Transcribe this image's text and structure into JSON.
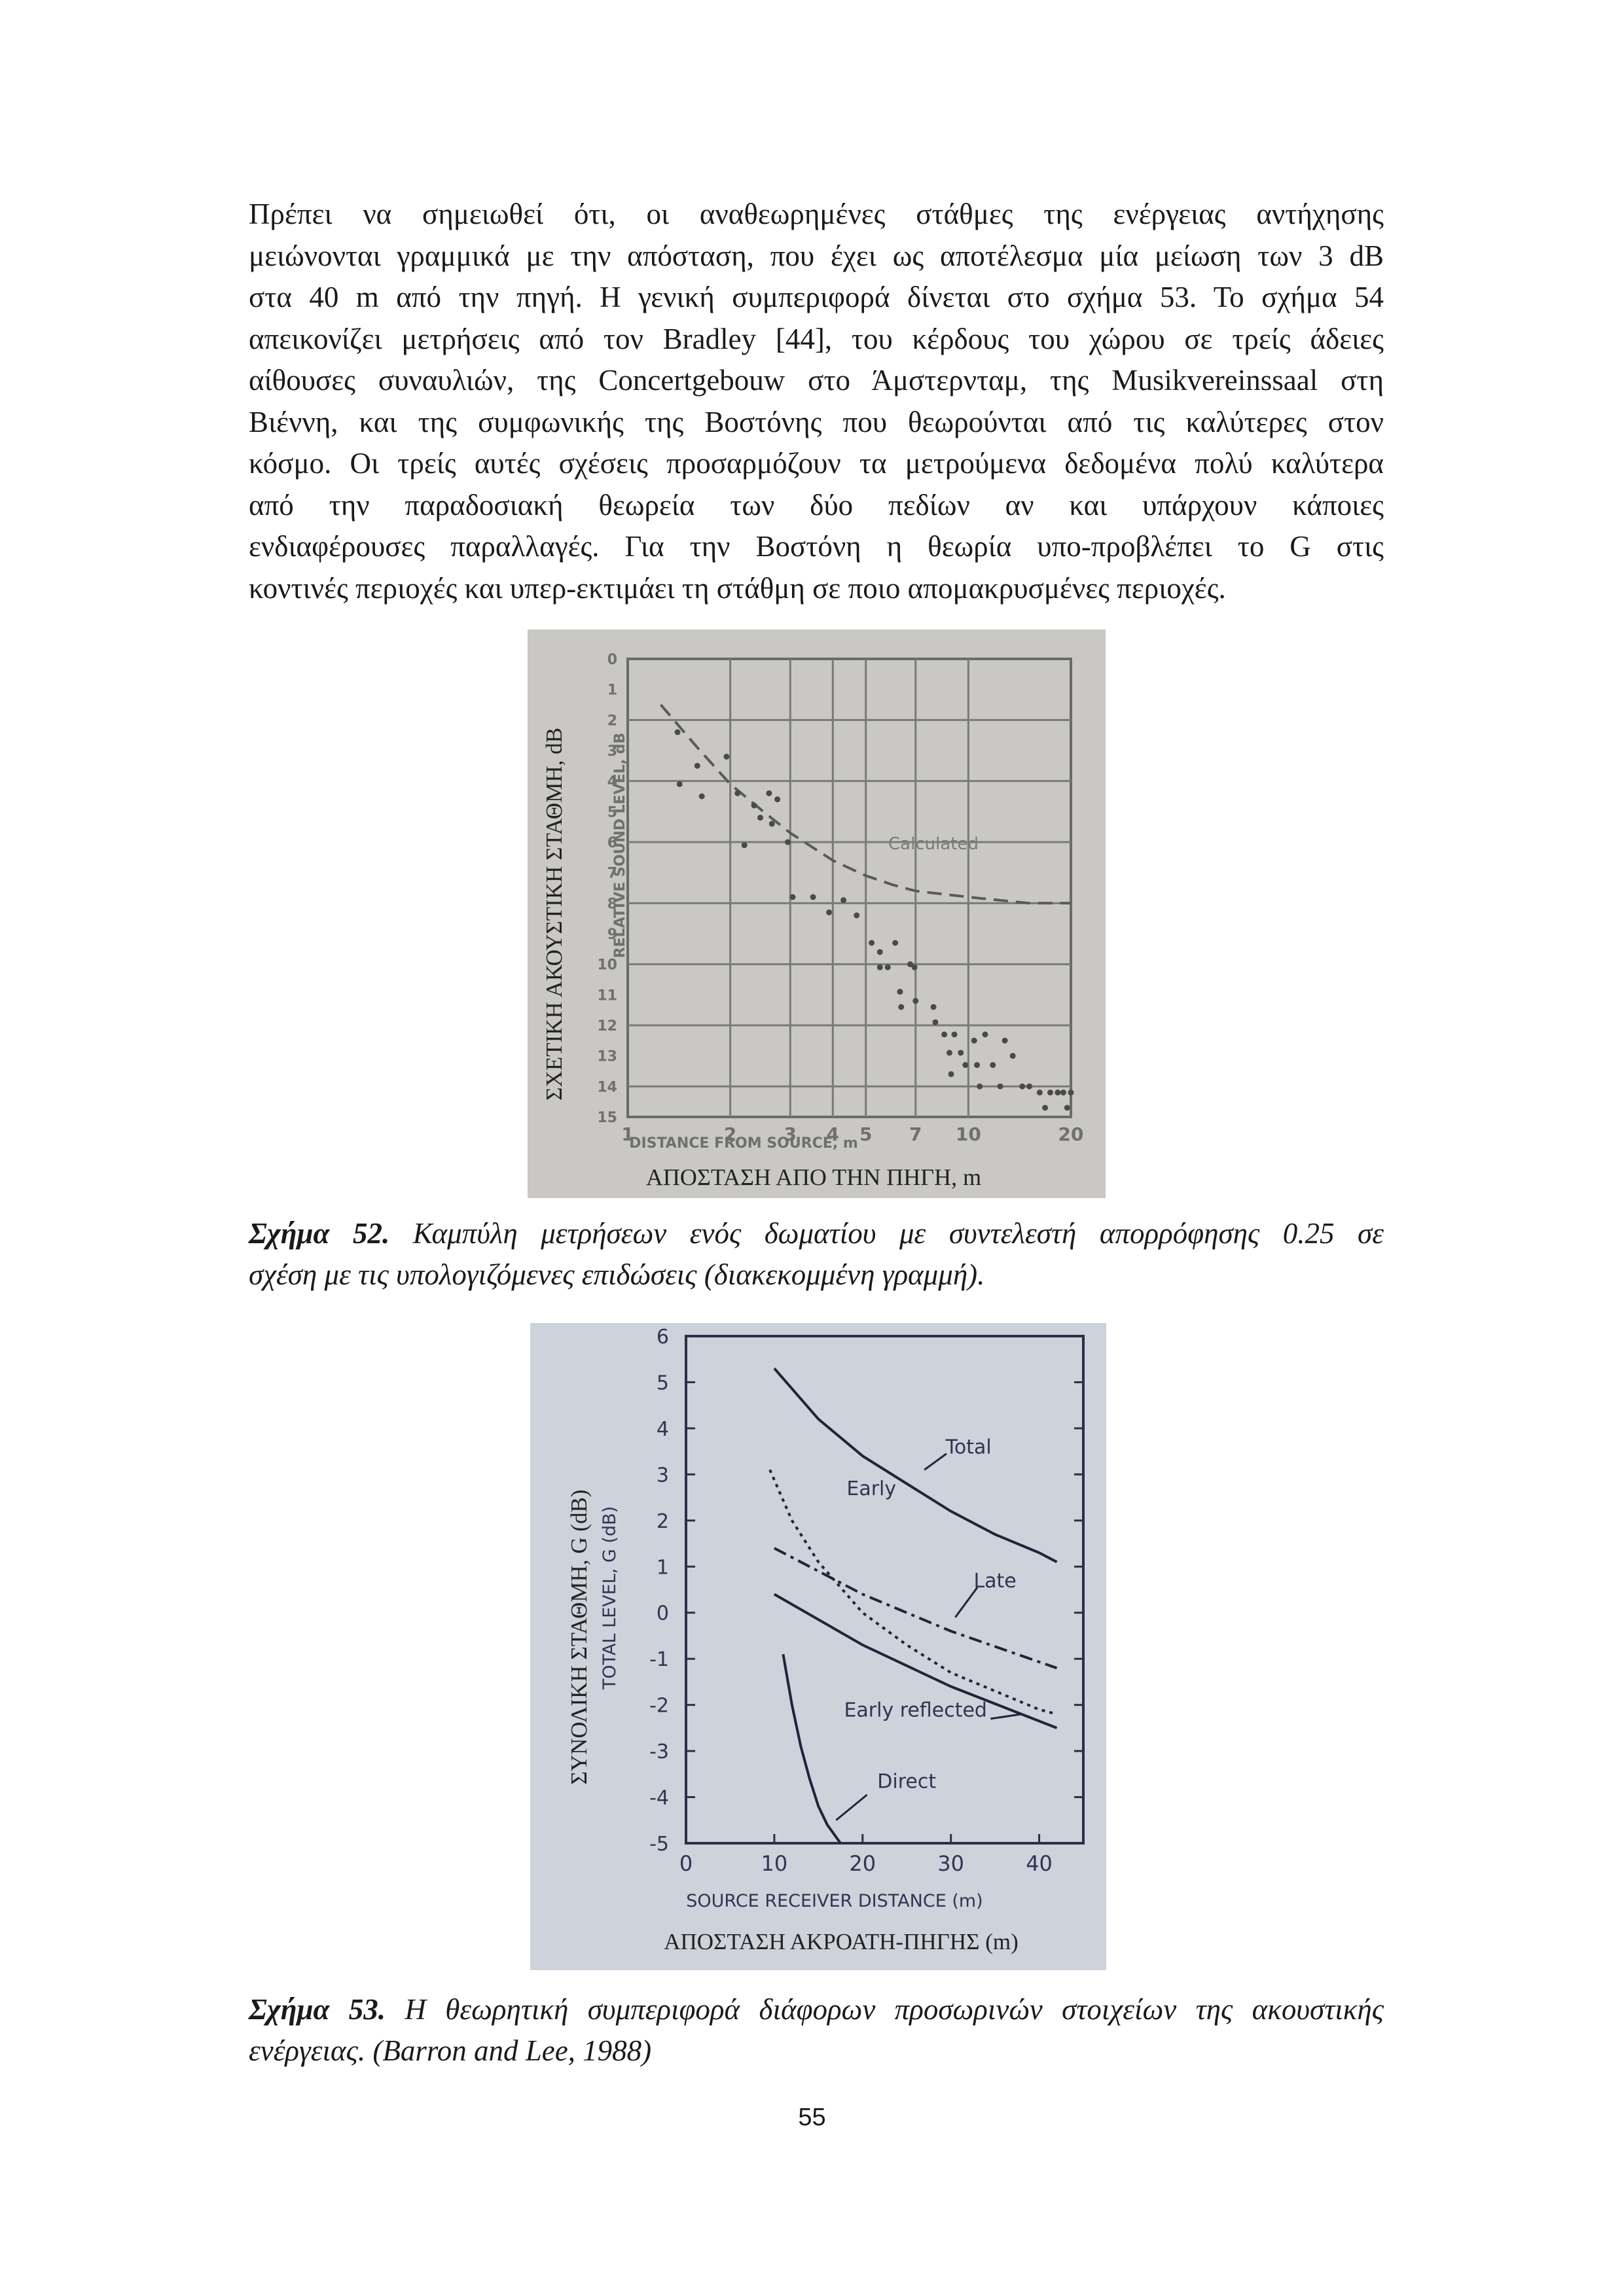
{
  "body_text": [
    "Πρέπει να σημειωθεί ότι, οι αναθεωρημένες στάθμες της ενέργειας αντήχησης",
    "μειώνονται γραμμικά με την απόσταση, που έχει ως αποτέλεσμα μία μείωση των 3 dB",
    "στα 40 m από την πηγή. Η γενική συμπεριφορά δίνεται στο σχήμα 53. Το σχήμα 54",
    "απεικονίζει μετρήσεις από τον Bradley [44], του κέρδους του χώρου σε τρείς άδειες",
    "αίθουσες συναυλιών, της Concertgebouw στο Άμστερνταμ, της Musikvereinssaal στη",
    "Βιέννη, και της συμφωνικής της Βοστόνης που θεωρούνται από τις καλύτερες στον",
    "κόσμο. Οι τρείς αυτές σχέσεις προσαρμόζουν τα μετρούμενα δεδομένα πολύ καλύτερα",
    "από την παραδοσιακή θεωρεία των δύο πεδίων αν και υπάρχουν κάποιες",
    "ενδιαφέρουσες παραλλαγές. Για την Βοστόνη η θεωρία υπο-προβλέπει το G στις",
    "κοντινές περιοχές και υπερ-εκτιμάει τη στάθμη σε ποιο απομακρυσμένες περιοχές."
  ],
  "figure52": {
    "caption_label": "Σχήμα 52.",
    "caption_lines": [
      " Καμπύλη μετρήσεων ενός δωματίου με συντελεστή απορρόφησης 0.25 σε",
      "σχέση με τις υπολογιζόμενες επιδώσεις (διακεκομμένη γραμμή)."
    ],
    "ylabel_greek": "ΣΧΕΤΙΚΗ ΑΚΟΥΣΤΙΚΗ ΣΤΑΘΜΗ, dB",
    "ylabel_english": "RELATIVE SOUND LEVEL, dB",
    "xlabel_english": "DISTANCE FROM SOURCE, m",
    "xlabel_greek": "ΑΠΟΣΤΑΣΗ ΑΠΟ ΤΗΝ ΠΗΓΗ, m",
    "curve_label": "Calculated"
  },
  "figure53": {
    "caption_label": "Σχήμα 53.",
    "caption_lines": [
      " Η θεωρητική συμπεριφορά διάφορων προσωρινών στοιχείων της ακουστικής",
      "ενέργειας. (Barron and Lee, 1988)"
    ],
    "ylabel_greek": "ΣΥΝΟΛΙΚΗ ΣΤΑΘΜΗ, G (dB)",
    "ylabel_english": "TOTAL LEVEL, G   (dB)",
    "xlabel_english": "SOURCE RECEIVER DISTANCE   (m)",
    "xlabel_greek": "ΑΠΟΣΤΑΣΗ ΑΚΡΟΑΤΗ-ΠΗΓΗΣ (m)"
  },
  "chart_data": [
    {
      "type": "scatter",
      "xscale": "log",
      "xlim": [
        1,
        20
      ],
      "ylim": [
        0,
        15
      ],
      "y_inverted": true,
      "grid": true,
      "xticks": [
        "1",
        "2",
        "3",
        "4",
        "5",
        "7",
        "10",
        "20"
      ],
      "xtick_values": [
        1,
        2,
        3,
        4,
        5,
        7,
        10,
        20
      ],
      "yticks": [
        "0",
        "1",
        "2",
        "3",
        "4",
        "5",
        "6",
        "7",
        "8",
        "9",
        "10",
        "11",
        "12",
        "13",
        "14",
        "15"
      ],
      "xlabel": "DISTANCE FROM SOURCE, m",
      "ylabel": "RELATIVE SOUND LEVEL, dB",
      "series": [
        {
          "name": "Calculated",
          "style": "dashed",
          "points": [
            [
              1.25,
              1.5
            ],
            [
              1.6,
              2.9
            ],
            [
              2,
              4.1
            ],
            [
              2.5,
              5.0
            ],
            [
              3,
              5.7
            ],
            [
              4,
              6.6
            ],
            [
              5,
              7.1
            ],
            [
              6,
              7.4
            ],
            [
              7,
              7.6
            ],
            [
              10,
              7.8
            ],
            [
              15,
              8.0
            ],
            [
              20,
              8.0
            ]
          ]
        },
        {
          "name": "Measured",
          "style": "points",
          "points": [
            [
              1.4,
              2.4
            ],
            [
              1.42,
              4.1
            ],
            [
              1.6,
              3.5
            ],
            [
              1.65,
              4.5
            ],
            [
              1.95,
              3.2
            ],
            [
              2.1,
              4.4
            ],
            [
              2.2,
              6.1
            ],
            [
              2.35,
              4.8
            ],
            [
              2.45,
              5.2
            ],
            [
              2.6,
              4.4
            ],
            [
              2.65,
              5.4
            ],
            [
              2.75,
              4.6
            ],
            [
              2.95,
              6.0
            ],
            [
              3.05,
              7.8
            ],
            [
              3.5,
              7.8
            ],
            [
              3.9,
              8.3
            ],
            [
              4.3,
              7.9
            ],
            [
              4.7,
              8.4
            ],
            [
              5.2,
              9.3
            ],
            [
              5.5,
              10.1
            ],
            [
              5.5,
              9.6
            ],
            [
              5.8,
              10.1
            ],
            [
              6.1,
              9.3
            ],
            [
              6.3,
              10.9
            ],
            [
              6.35,
              11.4
            ],
            [
              6.75,
              10.0
            ],
            [
              6.95,
              10.1
            ],
            [
              7.0,
              11.2
            ],
            [
              7.9,
              11.4
            ],
            [
              8.0,
              11.9
            ],
            [
              8.5,
              12.3
            ],
            [
              8.8,
              12.9
            ],
            [
              8.9,
              13.6
            ],
            [
              9.1,
              12.3
            ],
            [
              9.5,
              12.9
            ],
            [
              9.8,
              13.3
            ],
            [
              10.4,
              12.5
            ],
            [
              10.6,
              13.3
            ],
            [
              10.8,
              14.0
            ],
            [
              11.2,
              12.3
            ],
            [
              11.8,
              13.3
            ],
            [
              12.4,
              14.0
            ],
            [
              12.8,
              12.5
            ],
            [
              13.5,
              13.0
            ],
            [
              14.4,
              14.0
            ],
            [
              15.1,
              14.0
            ],
            [
              16.2,
              14.2
            ],
            [
              16.8,
              14.7
            ],
            [
              17.4,
              14.2
            ],
            [
              18.3,
              14.2
            ],
            [
              19.0,
              14.2
            ],
            [
              19.5,
              14.7
            ],
            [
              20,
              14.2
            ]
          ]
        }
      ]
    },
    {
      "type": "line",
      "xlim": [
        0,
        45
      ],
      "ylim": [
        -5,
        6
      ],
      "xticks": [
        "0",
        "10",
        "20",
        "30",
        "40"
      ],
      "xtick_values": [
        0,
        10,
        20,
        30,
        40
      ],
      "yticks": [
        "6",
        "5",
        "4",
        "3",
        "2",
        "1",
        "0",
        "-1",
        "-2",
        "-3",
        "-4",
        "-5"
      ],
      "ytick_values": [
        6,
        5,
        4,
        3,
        2,
        1,
        0,
        -1,
        -2,
        -3,
        -4,
        -5
      ],
      "xlabel": "SOURCE RECEIVER DISTANCE   (m)",
      "ylabel": "TOTAL LEVEL, G   (dB)",
      "series": [
        {
          "name": "Total",
          "style": "solid",
          "points": [
            [
              10,
              5.3
            ],
            [
              15,
              4.2
            ],
            [
              20,
              3.4
            ],
            [
              25,
              2.8
            ],
            [
              30,
              2.2
            ],
            [
              35,
              1.7
            ],
            [
              40,
              1.3
            ],
            [
              42,
              1.1
            ]
          ]
        },
        {
          "name": "Early",
          "style": "dotted",
          "points": [
            [
              9.5,
              3.1
            ],
            [
              12,
              2.0
            ],
            [
              15,
              1.1
            ],
            [
              20,
              0.0
            ],
            [
              25,
              -0.7
            ],
            [
              30,
              -1.3
            ],
            [
              35,
              -1.7
            ],
            [
              40,
              -2.1
            ],
            [
              42,
              -2.2
            ]
          ]
        },
        {
          "name": "Late",
          "style": "dashdot",
          "points": [
            [
              10,
              1.4
            ],
            [
              20,
              0.4
            ],
            [
              30,
              -0.4
            ],
            [
              42,
              -1.2
            ]
          ]
        },
        {
          "name": "Early reflected",
          "style": "solid",
          "points": [
            [
              10,
              0.4
            ],
            [
              20,
              -0.7
            ],
            [
              30,
              -1.6
            ],
            [
              42,
              -2.5
            ]
          ]
        },
        {
          "name": "Direct",
          "style": "solid",
          "points": [
            [
              11,
              -0.9
            ],
            [
              12,
              -2.0
            ],
            [
              13,
              -2.9
            ],
            [
              14,
              -3.6
            ],
            [
              15,
              -4.2
            ],
            [
              16,
              -4.6
            ],
            [
              17.5,
              -5.0
            ]
          ]
        }
      ]
    }
  ]
}
